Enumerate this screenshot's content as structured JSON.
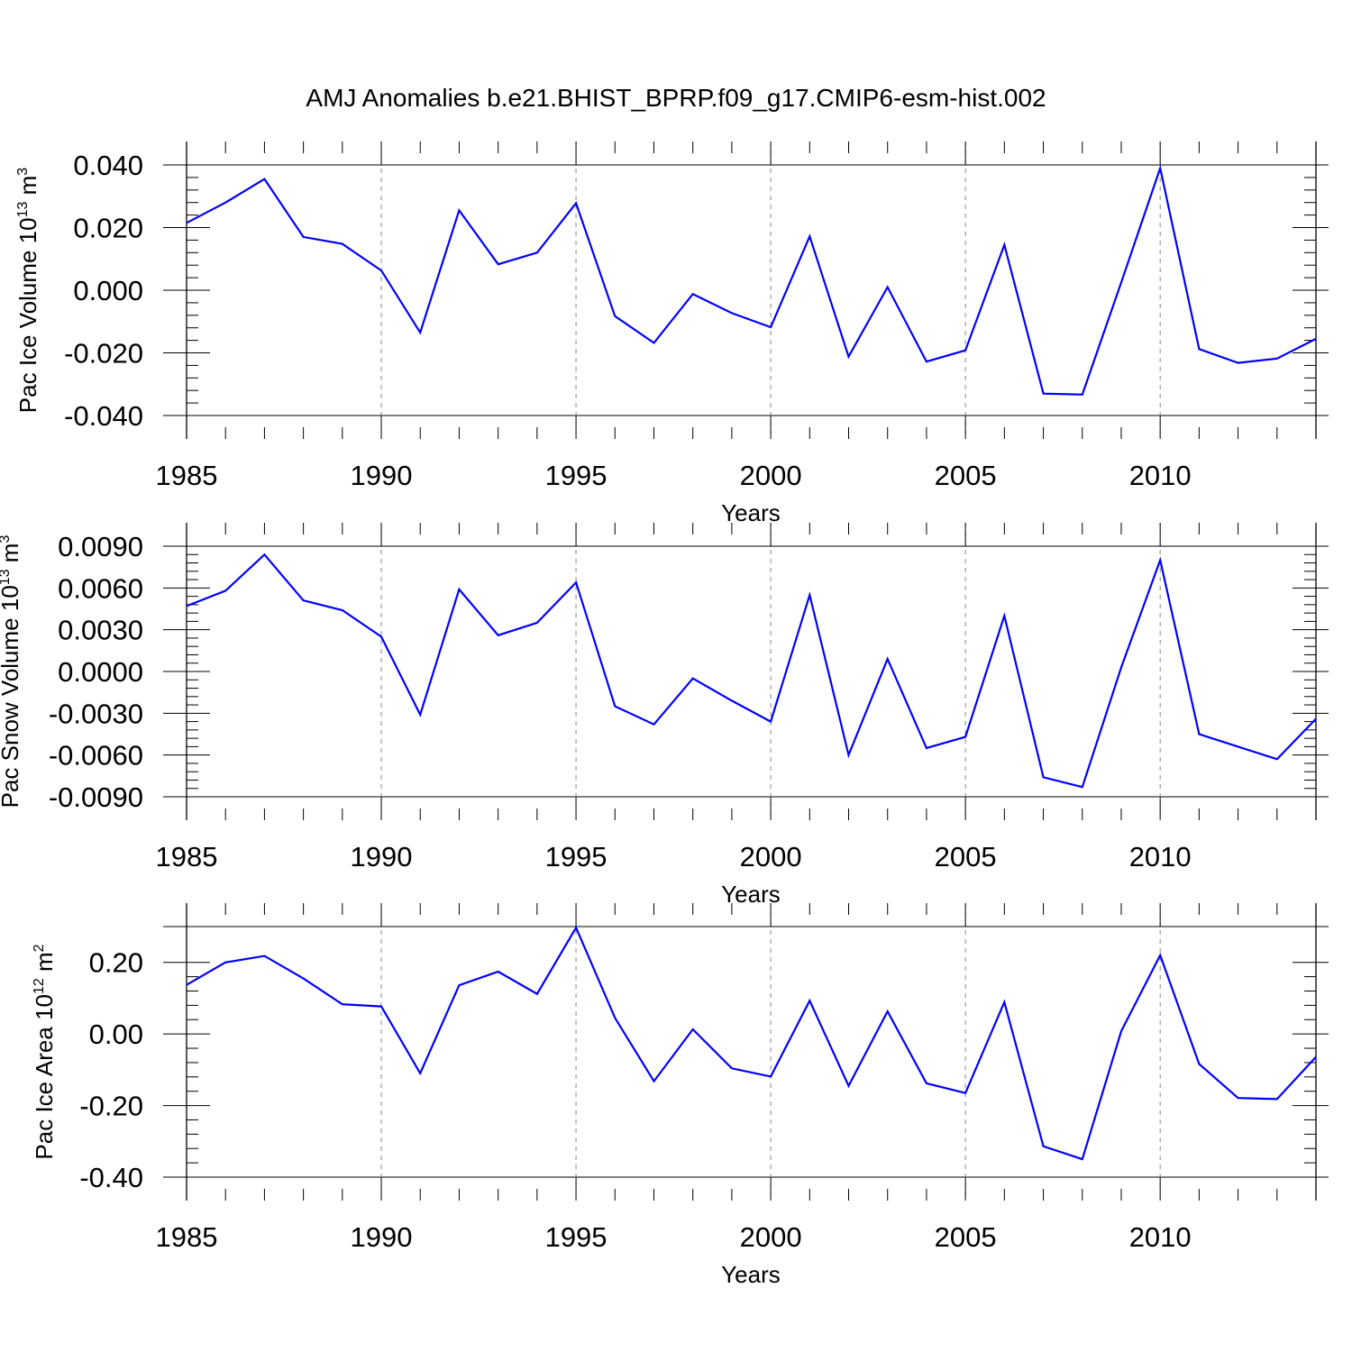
{
  "title": "AMJ Anomalies b.e21.BHIST_BPRP.f09_g17.CMIP6-esm-hist.002",
  "line_color": "#0000ff",
  "chart_data": [
    {
      "type": "line",
      "title": "AMJ Anomalies b.e21.BHIST_BPRP.f09_g17.CMIP6-esm-hist.002",
      "xlabel": "Years",
      "ylabel": {
        "pre": "Pac Ice Volume 10",
        "exp": "13",
        "mid": " m",
        "unit_exp": "3"
      },
      "xlim": [
        1985,
        2014
      ],
      "ylim": [
        -0.04,
        0.04
      ],
      "xticks": [
        "1985",
        "1990",
        "1995",
        "2000",
        "2005",
        "2010"
      ],
      "yticks": [
        {
          "v": 0.04,
          "label": "0.040"
        },
        {
          "v": 0.02,
          "label": "0.020"
        },
        {
          "v": 0.0,
          "label": "0.000"
        },
        {
          "v": -0.02,
          "label": "-0.020"
        },
        {
          "v": -0.04,
          "label": "-0.040"
        }
      ],
      "x": [
        1985,
        1986,
        1987,
        1988,
        1989,
        1990,
        1991,
        1992,
        1993,
        1994,
        1995,
        1996,
        1997,
        1998,
        1999,
        2000,
        2001,
        2002,
        2003,
        2004,
        2005,
        2006,
        2007,
        2008,
        2009,
        2010,
        2011,
        2012,
        2013,
        2014
      ],
      "values": [
        0.0215,
        0.028,
        0.0355,
        0.017,
        0.0148,
        0.0063,
        -0.0135,
        0.0255,
        0.0083,
        0.012,
        0.0278,
        -0.0083,
        -0.0168,
        -0.0012,
        -0.0073,
        -0.0118,
        0.0172,
        -0.0212,
        0.001,
        -0.0228,
        -0.0192,
        0.0145,
        -0.033,
        -0.0333,
        0.0025,
        0.039,
        -0.0188,
        -0.0232,
        -0.0218,
        -0.0155
      ],
      "grid": "dashed vertical at major x ticks"
    },
    {
      "type": "line",
      "xlabel": "Years",
      "ylabel": {
        "pre": "Pac Snow Volume 10",
        "exp": "13",
        "mid": " m",
        "unit_exp": "3"
      },
      "xlim": [
        1985,
        2014
      ],
      "ylim": [
        -0.009,
        0.009
      ],
      "xticks": [
        "1985",
        "1990",
        "1995",
        "2000",
        "2005",
        "2010"
      ],
      "yticks": [
        {
          "v": 0.009,
          "label": "0.0090"
        },
        {
          "v": 0.006,
          "label": "0.0060"
        },
        {
          "v": 0.003,
          "label": "0.0030"
        },
        {
          "v": 0.0,
          "label": "0.0000"
        },
        {
          "v": -0.003,
          "label": "-0.0030"
        },
        {
          "v": -0.006,
          "label": "-0.0060"
        },
        {
          "v": -0.009,
          "label": "-0.0090"
        }
      ],
      "x": [
        1985,
        1986,
        1987,
        1988,
        1989,
        1990,
        1991,
        1992,
        1993,
        1994,
        1995,
        1996,
        1997,
        1998,
        1999,
        2000,
        2001,
        2002,
        2003,
        2004,
        2005,
        2006,
        2007,
        2008,
        2009,
        2010,
        2011,
        2012,
        2013,
        2014
      ],
      "values": [
        0.0047,
        0.0058,
        0.0084,
        0.0051,
        0.0044,
        0.0025,
        -0.0031,
        0.0059,
        0.0026,
        0.0035,
        0.0064,
        -0.0025,
        -0.0038,
        -0.0005,
        -0.0021,
        -0.0036,
        0.0055,
        -0.006,
        0.0009,
        -0.0055,
        -0.0047,
        0.004,
        -0.0076,
        -0.0083,
        0.0003,
        0.008,
        -0.0045,
        -0.0054,
        -0.0063,
        -0.0034
      ],
      "grid": "dashed vertical at major x ticks"
    },
    {
      "type": "line",
      "xlabel": "Years",
      "ylabel": {
        "pre": "Pac Ice Area 10",
        "exp": "12",
        "mid": " m",
        "unit_exp": "2"
      },
      "xlim": [
        1985,
        2014
      ],
      "ylim": [
        -0.4,
        0.3
      ],
      "xticks": [
        "1985",
        "1990",
        "1995",
        "2000",
        "2005",
        "2010"
      ],
      "yticks": [
        {
          "v": 0.2,
          "label": "0.20"
        },
        {
          "v": 0.0,
          "label": "0.00"
        },
        {
          "v": -0.2,
          "label": "-0.20"
        },
        {
          "v": -0.4,
          "label": "-0.40"
        }
      ],
      "x": [
        1985,
        1986,
        1987,
        1988,
        1989,
        1990,
        1991,
        1992,
        1993,
        1994,
        1995,
        1996,
        1997,
        1998,
        1999,
        2000,
        2001,
        2002,
        2003,
        2004,
        2005,
        2006,
        2007,
        2008,
        2009,
        2010,
        2011,
        2012,
        2013,
        2014
      ],
      "values": [
        0.137,
        0.2,
        0.218,
        0.155,
        0.083,
        0.077,
        -0.11,
        0.136,
        0.174,
        0.112,
        0.297,
        0.045,
        -0.132,
        0.013,
        -0.096,
        -0.119,
        0.093,
        -0.145,
        0.063,
        -0.138,
        -0.165,
        0.089,
        -0.314,
        -0.35,
        0.008,
        0.22,
        -0.084,
        -0.179,
        -0.182,
        -0.064
      ],
      "grid": "dashed vertical at major x ticks"
    }
  ]
}
